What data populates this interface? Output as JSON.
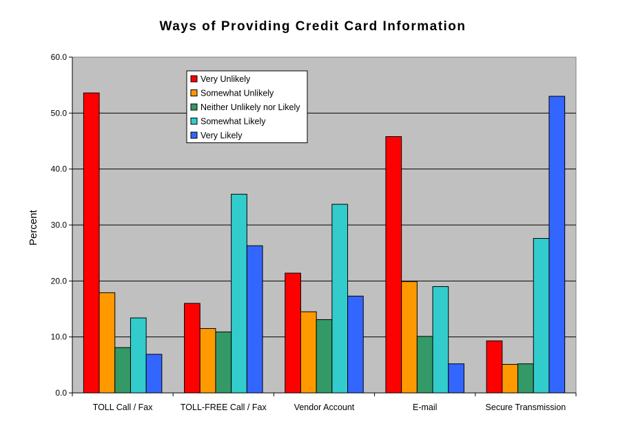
{
  "chart_data": {
    "type": "bar",
    "title": "Ways of Providing Credit Card Information",
    "xlabel": "",
    "ylabel": "Percent",
    "ylim": [
      0,
      60
    ],
    "yticks": [
      "0.0",
      "10.0",
      "20.0",
      "30.0",
      "40.0",
      "50.0",
      "60.0"
    ],
    "grid": true,
    "legend_position": "top-left inside plot",
    "categories": [
      "TOLL Call / Fax",
      "TOLL-FREE Call / Fax",
      "Vendor Account",
      "E-mail",
      "Secure Transmission"
    ],
    "series": [
      {
        "name": "Very Unlikely",
        "color": "#ff0000",
        "values": [
          53.6,
          16.0,
          21.4,
          45.8,
          9.3
        ]
      },
      {
        "name": "Somewhat Unlikely",
        "color": "#ff9900",
        "values": [
          17.9,
          11.5,
          14.5,
          19.9,
          5.1
        ]
      },
      {
        "name": "Neither Unlikely nor Likely",
        "color": "#339966",
        "values": [
          8.1,
          10.9,
          13.1,
          10.1,
          5.2
        ]
      },
      {
        "name": "Somewhat Likely",
        "color": "#33cccc",
        "values": [
          13.4,
          35.5,
          33.7,
          19.0,
          27.6
        ]
      },
      {
        "name": "Very Likely",
        "color": "#3366ff",
        "values": [
          6.9,
          26.3,
          17.3,
          5.2,
          53.0
        ]
      }
    ],
    "plot_background": "#c0c0c0"
  }
}
